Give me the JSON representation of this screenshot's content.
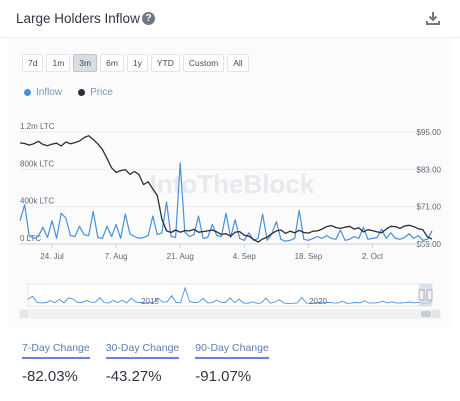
{
  "header": {
    "title": "Large Holders Inflow",
    "help_icon": "question-circle-icon",
    "download_icon": "download-icon"
  },
  "ranges": [
    "7d",
    "1m",
    "3m",
    "6m",
    "1y",
    "YTD",
    "Custom",
    "All"
  ],
  "active_range": "3m",
  "watermark": "IntoTheBlock",
  "colors": {
    "inflow": "#4a90d9",
    "price": "#2b2f36",
    "change_underline": "#6f7fe0"
  },
  "chart_data": {
    "type": "line",
    "legend": {
      "placement": "top-left",
      "entries": [
        "Inflow",
        "Price"
      ]
    },
    "x_tick_labels": [
      "24. Jul",
      "7. Aug",
      "21. Aug",
      "4. Sep",
      "18. Sep",
      "2. Oct"
    ],
    "x_ticks_day_index": [
      7,
      21,
      35,
      49,
      63,
      77
    ],
    "y_left": {
      "ticks": [
        "1.2m LTC",
        "800k LTC",
        "400k LTC",
        "0 LTC"
      ],
      "tick_values": [
        1200000,
        800000,
        400000,
        0
      ],
      "range": [
        0,
        1200000
      ]
    },
    "y_right": {
      "ticks": [
        "$95.00",
        "$83.00",
        "$71.00",
        "$59.00"
      ],
      "tick_values": [
        95,
        83,
        71,
        59
      ],
      "range": [
        59,
        95
      ]
    },
    "grid": true,
    "series": [
      {
        "name": "Inflow",
        "axis": "left",
        "values": [
          250000,
          420000,
          90000,
          60000,
          80000,
          180000,
          70000,
          250000,
          60000,
          330000,
          280000,
          90000,
          80000,
          190000,
          100000,
          90000,
          350000,
          70000,
          60000,
          190000,
          80000,
          210000,
          60000,
          320000,
          110000,
          80000,
          60000,
          70000,
          90000,
          300000,
          100000,
          120000,
          450000,
          80000,
          70000,
          870000,
          130000,
          80000,
          100000,
          300000,
          60000,
          70000,
          210000,
          90000,
          80000,
          330000,
          70000,
          260000,
          60000,
          40000,
          120000,
          40000,
          60000,
          320000,
          40000,
          110000,
          240000,
          50000,
          30000,
          40000,
          60000,
          360000,
          50000,
          40000,
          60000,
          80000,
          60000,
          90000,
          60000,
          50000,
          150000,
          40000,
          50000,
          80000,
          60000,
          180000,
          50000,
          60000,
          70000,
          160000,
          60000,
          120000,
          60000,
          50000,
          70000,
          110000,
          60000,
          90000,
          40000,
          50000,
          140000
        ]
      },
      {
        "name": "Price",
        "axis": "right",
        "values": [
          91.5,
          91.3,
          90.8,
          91.2,
          92.0,
          91.0,
          90.6,
          91.1,
          91.4,
          90.5,
          91.8,
          91.2,
          91.6,
          92.1,
          93.2,
          93.8,
          92.6,
          91.2,
          89.4,
          86.5,
          83.5,
          82.0,
          82.6,
          82.9,
          81.4,
          82.3,
          81.3,
          78.1,
          79.0,
          76.7,
          74.6,
          67.0,
          63.2,
          62.7,
          63.5,
          62.8,
          63.3,
          63.2,
          63.7,
          62.8,
          63.0,
          63.2,
          63.5,
          62.9,
          62.1,
          62.3,
          61.5,
          62.8,
          63.0,
          61.8,
          61.5,
          60.5,
          59.6,
          60.6,
          61.2,
          62.3,
          63.2,
          63.5,
          62.4,
          63.1,
          62.6,
          63.4,
          62.7,
          62.5,
          63.1,
          63.2,
          63.8,
          64.6,
          64.9,
          64.3,
          64.0,
          64.4,
          64.7,
          63.8,
          64.2,
          62.9,
          63.6,
          63.3,
          62.9,
          62.6,
          63.8,
          64.7,
          64.6,
          64.0,
          64.8,
          65.0,
          64.6,
          63.9,
          63.6,
          61.3,
          60.6
        ]
      }
    ],
    "navigator": {
      "x_tick_labels": [
        "2015",
        "2020"
      ]
    }
  },
  "changes": [
    {
      "label": "7-Day Change",
      "value": "-82.03%"
    },
    {
      "label": "30-Day Change",
      "value": "-43.27%"
    },
    {
      "label": "90-Day Change",
      "value": "-91.07%"
    }
  ]
}
